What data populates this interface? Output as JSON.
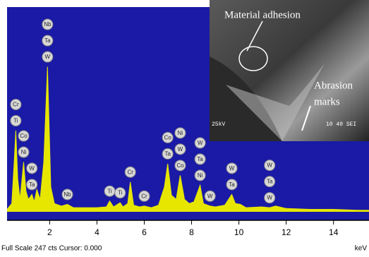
{
  "chart_data": {
    "type": "spectrum",
    "color": "#e6e600",
    "background": "#1a1aa6",
    "x": [
      0.2,
      0.4,
      0.5,
      0.57,
      0.65,
      0.75,
      0.85,
      0.9,
      1.0,
      1.1,
      1.25,
      1.35,
      1.46,
      1.6,
      1.75,
      1.91,
      2.05,
      2.2,
      2.5,
      2.75,
      3.0,
      3.5,
      4.0,
      4.4,
      4.54,
      4.7,
      4.98,
      5.1,
      5.3,
      5.41,
      5.55,
      5.8,
      6.0,
      6.3,
      6.6,
      6.85,
      6.99,
      7.15,
      7.35,
      7.52,
      7.7,
      7.9,
      8.1,
      8.36,
      8.5,
      8.78,
      9.0,
      9.4,
      9.7,
      9.85,
      10.06,
      10.3,
      10.96,
      11.3,
      11.55,
      12,
      13,
      14,
      15,
      15.5
    ],
    "values": [
      3,
      10,
      60,
      98,
      40,
      15,
      45,
      60,
      25,
      15,
      21,
      12,
      27,
      15,
      60,
      175,
      30,
      10,
      7,
      9,
      5,
      5,
      5,
      6,
      13,
      6,
      11,
      6,
      10,
      36,
      8,
      6,
      7,
      5,
      8,
      30,
      58,
      20,
      15,
      44,
      15,
      10,
      12,
      32,
      10,
      7,
      6,
      8,
      21,
      10,
      9,
      5,
      6,
      5,
      7,
      4,
      3,
      3,
      2,
      2
    ],
    "xlim": [
      0.2,
      15.5
    ],
    "ylim": [
      0,
      247
    ],
    "xticks": [
      2,
      4,
      6,
      8,
      10,
      12,
      14
    ],
    "x_unit": "keV",
    "footer": "Full Scale 247 cts Cursor: 0.000",
    "peak_labels": [
      {
        "x": 0.57,
        "labels": [
          "Cr",
          "Ti"
        ]
      },
      {
        "x": 0.9,
        "labels": [
          "Co",
          "Ni"
        ]
      },
      {
        "x": 1.25,
        "labels": [
          "W",
          "Ta"
        ]
      },
      {
        "x": 1.91,
        "labels": [
          "Nb",
          "Ta",
          "W"
        ]
      },
      {
        "x": 2.75,
        "labels": [
          "Nb"
        ]
      },
      {
        "x": 4.54,
        "labels": [
          "Ti"
        ]
      },
      {
        "x": 4.98,
        "labels": [
          "Ti"
        ]
      },
      {
        "x": 5.41,
        "labels": [
          "Cr"
        ]
      },
      {
        "x": 6.0,
        "labels": [
          "Cr"
        ]
      },
      {
        "x": 6.99,
        "labels": [
          "Co",
          "Ta"
        ]
      },
      {
        "x": 7.52,
        "labels": [
          "Ni",
          "W",
          "Co"
        ]
      },
      {
        "x": 8.36,
        "labels": [
          "W",
          "Ta",
          "Ni"
        ]
      },
      {
        "x": 8.78,
        "labels": [
          "W"
        ]
      },
      {
        "x": 9.7,
        "labels": [
          "W",
          "Ta"
        ]
      },
      {
        "x": 11.3,
        "labels": [
          "W",
          "Ta",
          "W"
        ]
      }
    ]
  },
  "inset": {
    "adhesion": "Material adhesion",
    "abrasion": [
      "Abrasion",
      "marks"
    ],
    "voltage": "25kV",
    "info": "10 40 SEI"
  }
}
